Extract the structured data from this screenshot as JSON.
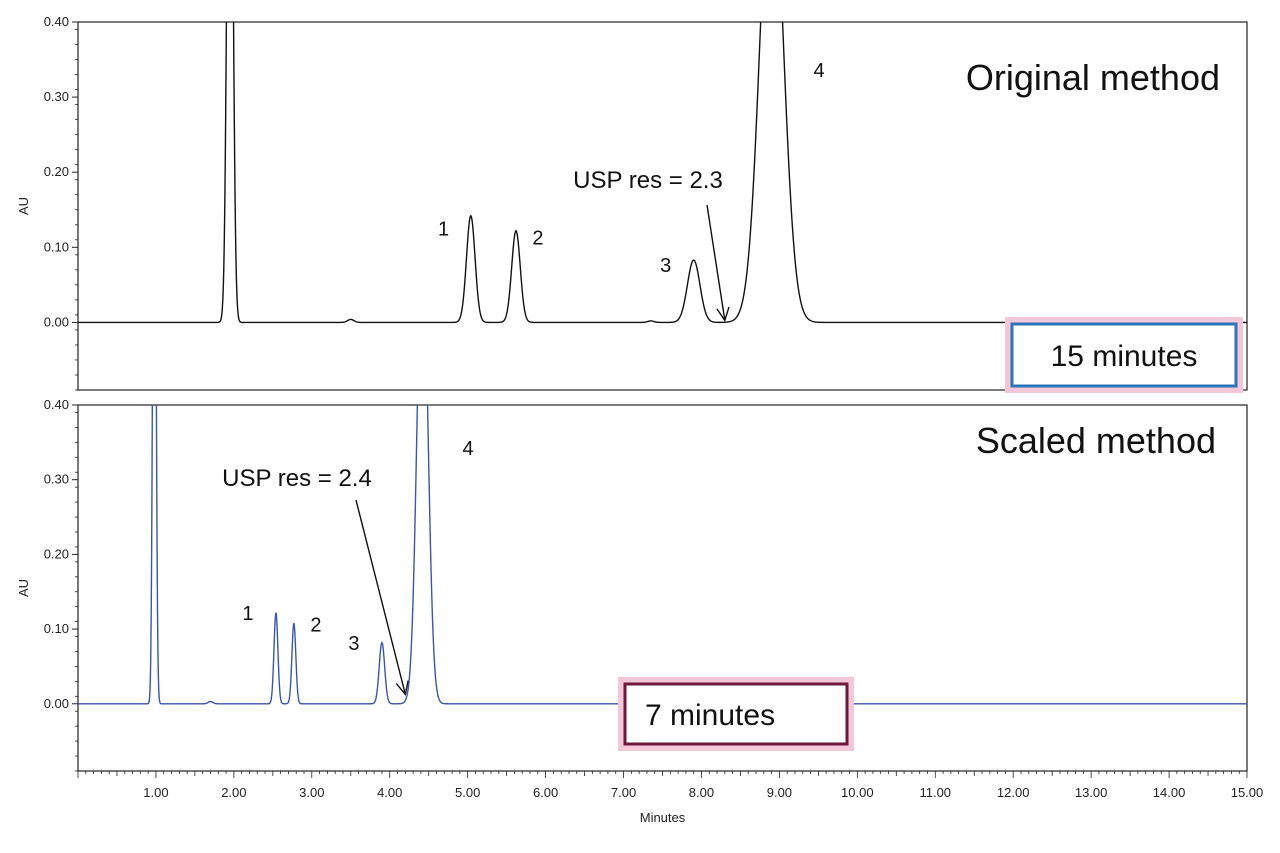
{
  "chart_data": [
    {
      "type": "line",
      "ylabel": "AU",
      "ylim": [
        -0.09,
        0.4
      ],
      "xlim": [
        0,
        15
      ],
      "y_ticks": [
        "0.00",
        "0.10",
        "0.20",
        "0.30",
        "0.40"
      ],
      "label": "Original method",
      "runtime_label": "15 minutes",
      "runtime_box_color": "#2a74b8",
      "line_color": "#111111",
      "peak_labels": [
        {
          "text": "1",
          "x": 5.05,
          "y": 0.124
        },
        {
          "text": "2",
          "x": 5.62,
          "y": 0.112
        },
        {
          "text": "3",
          "x": 7.9,
          "y": 0.075
        },
        {
          "text": "4",
          "x": 8.9,
          "y": 0.35
        }
      ],
      "annotation": {
        "text": "USP res = 2.3",
        "x": 8.3,
        "y": 0.0
      },
      "peaks": [
        {
          "x": 1.95,
          "y": 0.95,
          "sigma": 0.035
        },
        {
          "x": 3.5,
          "y": 0.004,
          "sigma": 0.04
        },
        {
          "x": 5.04,
          "y": 0.142,
          "sigma": 0.055
        },
        {
          "x": 5.62,
          "y": 0.122,
          "sigma": 0.055
        },
        {
          "x": 7.35,
          "y": 0.002,
          "sigma": 0.04
        },
        {
          "x": 7.9,
          "y": 0.083,
          "sigma": 0.08
        },
        {
          "x": 8.9,
          "y": 0.62,
          "sigma": 0.15
        }
      ]
    },
    {
      "type": "line",
      "ylabel": "AU",
      "xlabel": "Minutes",
      "ylim": [
        -0.09,
        0.4
      ],
      "xlim": [
        0,
        15
      ],
      "y_ticks": [
        "0.00",
        "0.10",
        "0.20",
        "0.30",
        "0.40"
      ],
      "x_ticks": [
        "1.00",
        "2.00",
        "3.00",
        "4.00",
        "5.00",
        "6.00",
        "7.00",
        "8.00",
        "9.00",
        "10.00",
        "11.00",
        "12.00",
        "13.00",
        "14.00",
        "15.00"
      ],
      "label": "Scaled method",
      "runtime_label": "7 minutes",
      "runtime_box_color": "#6b1a3c",
      "line_color": "#3a56a8",
      "peak_labels": [
        {
          "text": "1",
          "x": 2.54,
          "y": 0.12
        },
        {
          "text": "2",
          "x": 2.77,
          "y": 0.105
        },
        {
          "text": "3",
          "x": 3.9,
          "y": 0.08
        },
        {
          "text": "4",
          "x": 4.45,
          "y": 0.35
        }
      ],
      "annotation": {
        "text": "USP res = 2.4",
        "x": 4.2,
        "y": 0.01
      },
      "peaks": [
        {
          "x": 0.98,
          "y": 0.95,
          "sigma": 0.02
        },
        {
          "x": 1.7,
          "y": 0.003,
          "sigma": 0.03
        },
        {
          "x": 2.54,
          "y": 0.122,
          "sigma": 0.025
        },
        {
          "x": 2.77,
          "y": 0.108,
          "sigma": 0.025
        },
        {
          "x": 3.9,
          "y": 0.082,
          "sigma": 0.035
        },
        {
          "x": 4.42,
          "y": 0.62,
          "sigma": 0.07
        }
      ]
    }
  ]
}
